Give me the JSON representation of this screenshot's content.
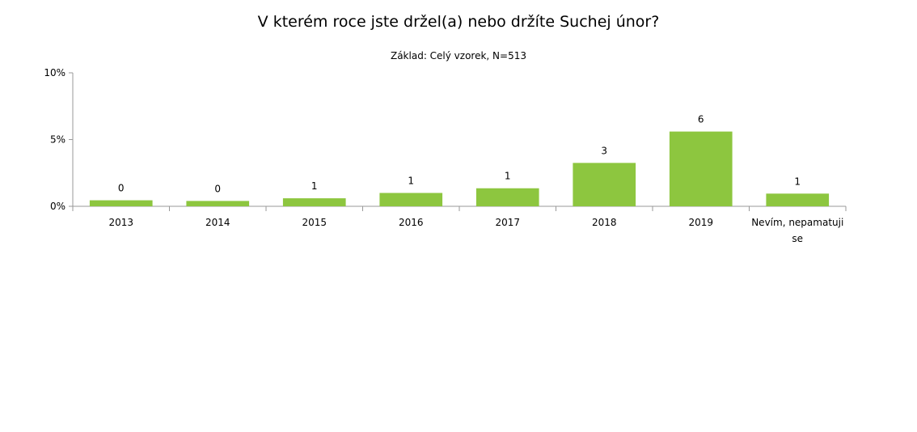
{
  "chart_data": {
    "type": "bar",
    "title": "V  kterém roce jste držel(a) nebo držíte Suchej únor?",
    "subtitle": "Základ: Celý vzorek, N=513",
    "xlabel": "",
    "ylabel": "",
    "categories": [
      "2013",
      "2014",
      "2015",
      "2016",
      "2017",
      "2018",
      "2019",
      "Nevím, nepamatuji se"
    ],
    "category_lines": [
      [
        "2013"
      ],
      [
        "2014"
      ],
      [
        "2015"
      ],
      [
        "2016"
      ],
      [
        "2017"
      ],
      [
        "2018"
      ],
      [
        "2019"
      ],
      [
        "Nevím, nepamatuji",
        "se"
      ]
    ],
    "values": [
      0.45,
      0.4,
      0.6,
      1.0,
      1.35,
      3.25,
      5.6,
      0.95
    ],
    "data_labels": [
      "0",
      "0",
      "1",
      "1",
      "1",
      "3",
      "6",
      "1"
    ],
    "ylim": [
      0,
      10
    ],
    "yticks": [
      0,
      5,
      10
    ],
    "ytick_labels": [
      "0%",
      "5%",
      "10%"
    ],
    "bar_color": "#8dc63f",
    "grid": false,
    "legend": "none"
  }
}
